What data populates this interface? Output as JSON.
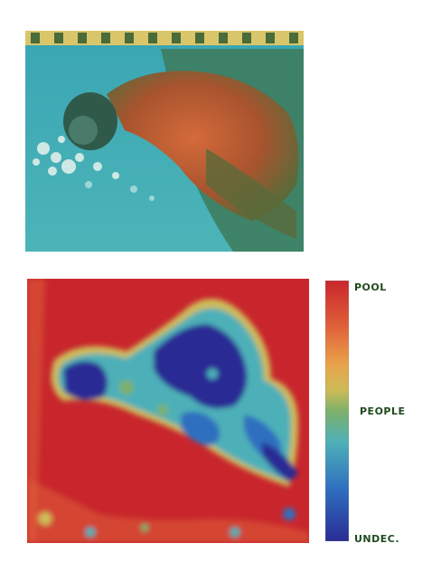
{
  "colorbar": {
    "labels": {
      "top": "POOL",
      "middle": "PEOPLE",
      "bottom": "UNDEC."
    },
    "colors": [
      "#c8262c",
      "#e0623a",
      "#e9a24a",
      "#cdbb58",
      "#7fb06a",
      "#4eb0b8",
      "#2f6fbf",
      "#2a2c94"
    ]
  }
}
